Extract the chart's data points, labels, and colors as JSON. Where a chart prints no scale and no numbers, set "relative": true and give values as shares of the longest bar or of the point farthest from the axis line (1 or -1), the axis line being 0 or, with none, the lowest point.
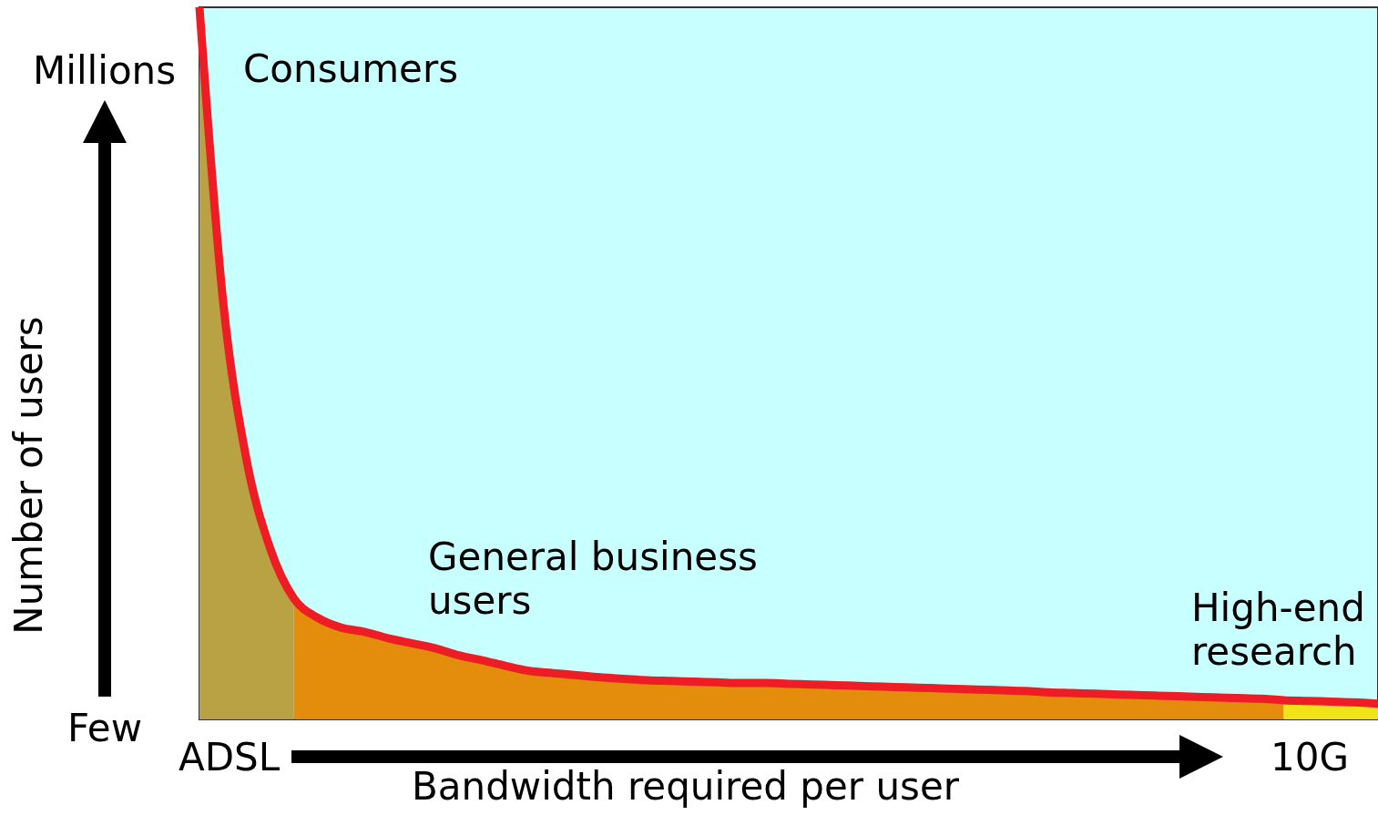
{
  "chart_data": {
    "type": "line",
    "relative": true,
    "xlabel": "Bandwidth required per user",
    "ylabel": "Number of users",
    "annotations": [
      "Millions",
      "Few",
      "ADSL",
      "10G",
      "Consumers",
      "General business users",
      "High-end research"
    ],
    "categories": [
      null,
      null,
      null,
      null,
      null,
      null,
      null,
      null,
      null,
      null,
      null,
      null,
      null,
      null,
      null,
      null,
      null,
      null,
      null,
      null,
      null,
      null,
      null,
      null,
      null,
      null,
      null,
      null,
      null,
      null,
      null,
      null,
      null,
      null,
      null,
      null,
      null,
      null,
      null,
      null,
      null,
      null,
      null,
      null,
      null,
      null,
      null,
      null,
      null,
      null,
      null
    ],
    "bands": [
      {
        "axis": "y",
        "from": 0,
        "to": 1,
        "color": "#c8ffff"
      }
    ],
    "series": [
      {
        "type": "area",
        "color": "#b9a243",
        "values": [
          1.0,
          0.588,
          0.364,
          0.24,
          0.17,
          null,
          null,
          null,
          null,
          null,
          null,
          null,
          null,
          null,
          null,
          null,
          null,
          null,
          null,
          null,
          null,
          null,
          null,
          null,
          null,
          null,
          null,
          null,
          null,
          null,
          null,
          null,
          null,
          null,
          null,
          null,
          null,
          null,
          null,
          null,
          null,
          null,
          null,
          null,
          null,
          null,
          null,
          null,
          null,
          null,
          null
        ]
      },
      {
        "type": "area",
        "color": "#e48c0c",
        "values": [
          null,
          null,
          null,
          null,
          0.17,
          0.143,
          0.129,
          0.123,
          0.114,
          0.107,
          0.1,
          0.09,
          0.083,
          0.075,
          0.068,
          0.065,
          0.062,
          0.059,
          0.057,
          0.055,
          0.054,
          0.053,
          0.052,
          0.051,
          0.051,
          0.05,
          0.049,
          0.048,
          0.047,
          0.046,
          0.045,
          0.044,
          0.043,
          0.042,
          0.041,
          0.04,
          0.038,
          0.037,
          0.036,
          0.035,
          0.034,
          0.033,
          0.032,
          0.031,
          0.03,
          0.029,
          0.027,
          null,
          null,
          null,
          null
        ]
      },
      {
        "type": "area",
        "color": "#f2e21a",
        "values": [
          null,
          null,
          null,
          null,
          null,
          null,
          null,
          null,
          null,
          null,
          null,
          null,
          null,
          null,
          null,
          null,
          null,
          null,
          null,
          null,
          null,
          null,
          null,
          null,
          null,
          null,
          null,
          null,
          null,
          null,
          null,
          null,
          null,
          null,
          null,
          null,
          null,
          null,
          null,
          null,
          null,
          null,
          null,
          null,
          null,
          null,
          0.027,
          0.026,
          0.025,
          0.024,
          0.022
        ]
      },
      {
        "color": "#ee1c24",
        "values": [
          1.0,
          0.588,
          0.364,
          0.24,
          0.17,
          0.143,
          0.129,
          0.123,
          0.114,
          0.107,
          0.1,
          0.09,
          0.083,
          0.075,
          0.068,
          0.065,
          0.062,
          0.059,
          0.057,
          0.055,
          0.054,
          0.053,
          0.052,
          0.051,
          0.051,
          0.05,
          0.049,
          0.048,
          0.047,
          0.046,
          0.045,
          0.044,
          0.043,
          0.042,
          0.041,
          0.04,
          0.038,
          0.037,
          0.036,
          0.035,
          0.034,
          0.033,
          0.032,
          0.031,
          0.03,
          0.029,
          0.027,
          0.026,
          0.025,
          0.024,
          0.022
        ]
      }
    ]
  }
}
